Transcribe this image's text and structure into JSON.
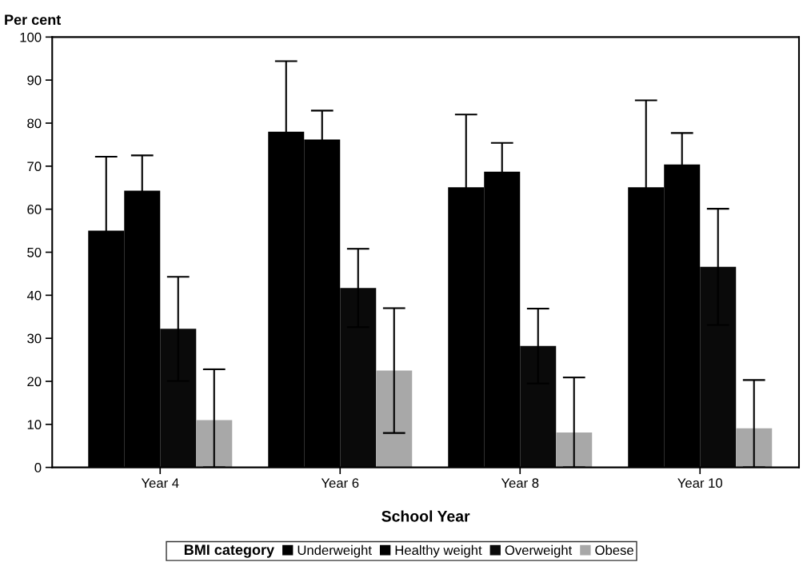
{
  "chart_data": {
    "type": "bar",
    "ylabel": "Per cent",
    "xlabel": "School Year",
    "legend_title": "BMI category",
    "categories": [
      "Year 4",
      "Year 6",
      "Year 8",
      "Year 10"
    ],
    "series": [
      {
        "name": "Underweight",
        "color": "#000000",
        "values": [
          55.0,
          78.0,
          65.1,
          65.1
        ],
        "errors": [
          17.2,
          16.4,
          16.9,
          20.2
        ]
      },
      {
        "name": "Healthy weight",
        "color": "#000000",
        "values": [
          64.3,
          76.2,
          68.7,
          70.4
        ],
        "errors": [
          8.2,
          6.7,
          6.7,
          7.3
        ]
      },
      {
        "name": "Overweight",
        "color": "#0a0a0a",
        "values": [
          32.2,
          41.7,
          28.2,
          46.6
        ],
        "errors": [
          12.1,
          9.1,
          8.7,
          13.5
        ]
      },
      {
        "name": "Obese",
        "color": "#a8a8a8",
        "values": [
          11.0,
          22.5,
          8.1,
          9.1
        ],
        "errors": [
          [
            0,
            22.8
          ],
          14.5,
          [
            0,
            20.9
          ],
          [
            0,
            20.3
          ]
        ]
      }
    ],
    "ylim": [
      0,
      100
    ],
    "yticks": [
      0,
      10,
      20,
      30,
      40,
      50,
      60,
      70,
      80,
      90,
      100
    ],
    "grid": false,
    "legend": "bottom"
  }
}
